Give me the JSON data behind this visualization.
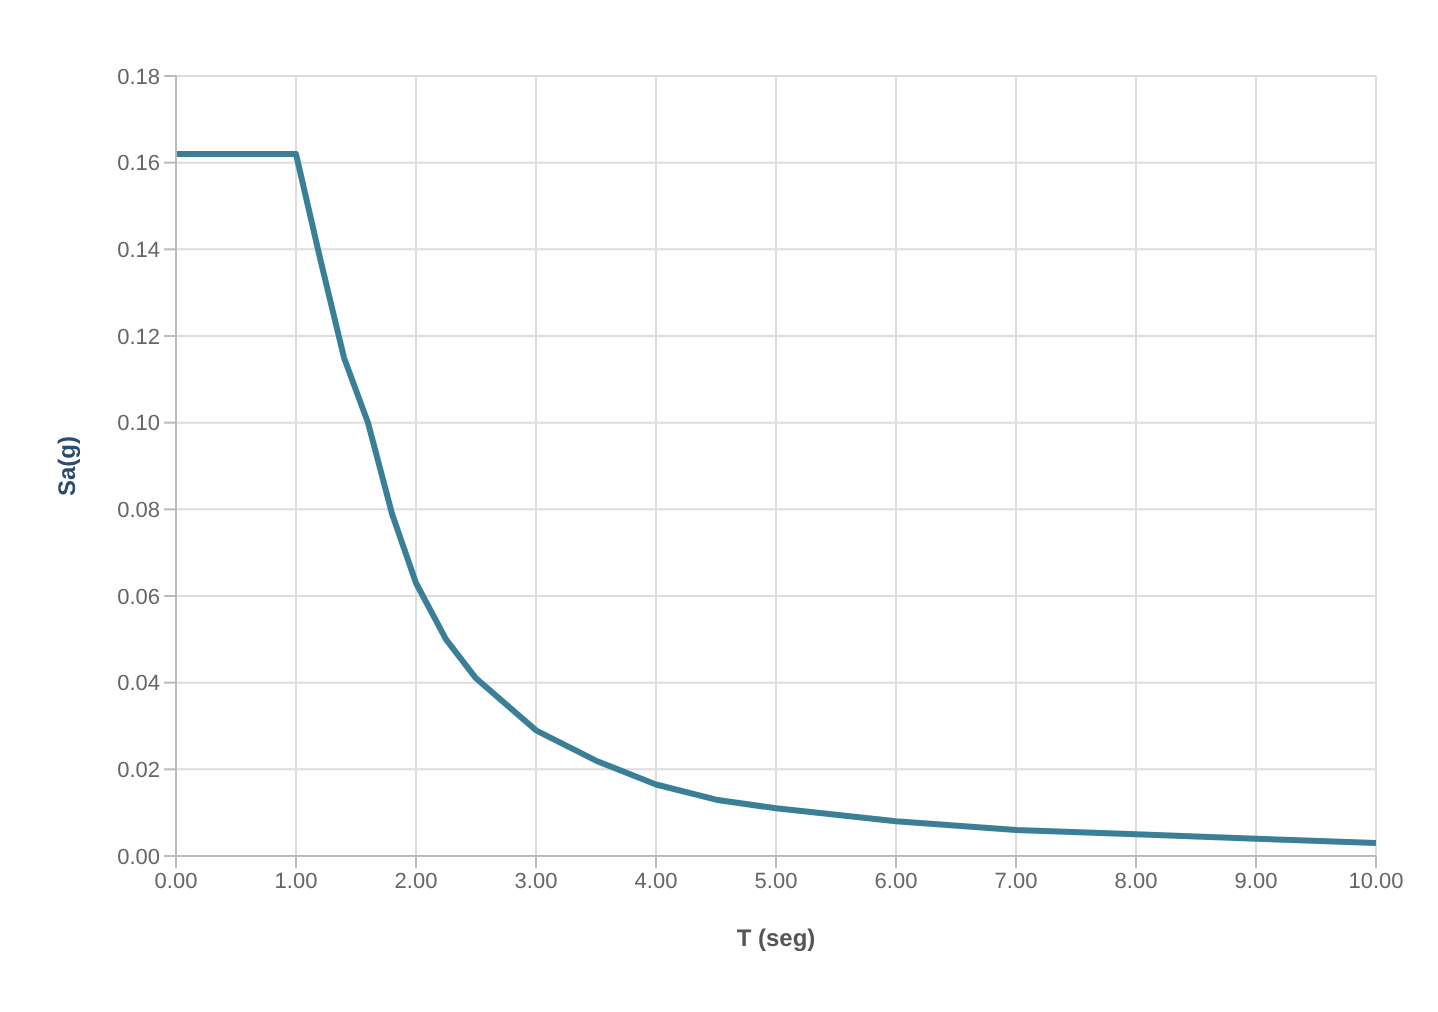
{
  "chart_data": {
    "type": "line",
    "xlabel": "T (seg)",
    "ylabel": "Sa(g)",
    "x": [
      0,
      1,
      1.2,
      1.4,
      1.6,
      1.8,
      2,
      2.25,
      2.5,
      3,
      3.5,
      4,
      4.5,
      5,
      6,
      7,
      8,
      9,
      10
    ],
    "series": [
      {
        "color": "#3a7f96",
        "values": [
          0.162,
          0.162,
          0.138,
          0.115,
          0.1,
          0.079,
          0.063,
          0.05,
          0.041,
          0.029,
          0.022,
          0.0165,
          0.013,
          0.011,
          0.008,
          0.006,
          0.005,
          0.004,
          0.003
        ]
      }
    ],
    "xlim": [
      0,
      10
    ],
    "ylim": [
      0,
      0.18
    ],
    "xticks": [
      {
        "value": 0,
        "label": "0.00"
      },
      {
        "value": 1,
        "label": "1.00"
      },
      {
        "value": 2,
        "label": "2.00"
      },
      {
        "value": 3,
        "label": "3.00"
      },
      {
        "value": 4,
        "label": "4.00"
      },
      {
        "value": 5,
        "label": "5.00"
      },
      {
        "value": 6,
        "label": "6.00"
      },
      {
        "value": 7,
        "label": "7.00"
      },
      {
        "value": 8,
        "label": "8.00"
      },
      {
        "value": 9,
        "label": "9.00"
      },
      {
        "value": 10,
        "label": "10.00"
      }
    ],
    "yticks": [
      {
        "value": 0,
        "label": "0.00"
      },
      {
        "value": 0.02,
        "label": "0.02"
      },
      {
        "value": 0.04,
        "label": "0.04"
      },
      {
        "value": 0.06,
        "label": "0.06"
      },
      {
        "value": 0.08,
        "label": "0.08"
      },
      {
        "value": 0.1,
        "label": "0.10"
      },
      {
        "value": 0.12,
        "label": "0.12"
      },
      {
        "value": 0.14,
        "label": "0.14"
      },
      {
        "value": 0.16,
        "label": "0.16"
      },
      {
        "value": 0.18,
        "label": "0.18"
      }
    ],
    "grid": true,
    "marker": "none",
    "line_style": "solid"
  }
}
